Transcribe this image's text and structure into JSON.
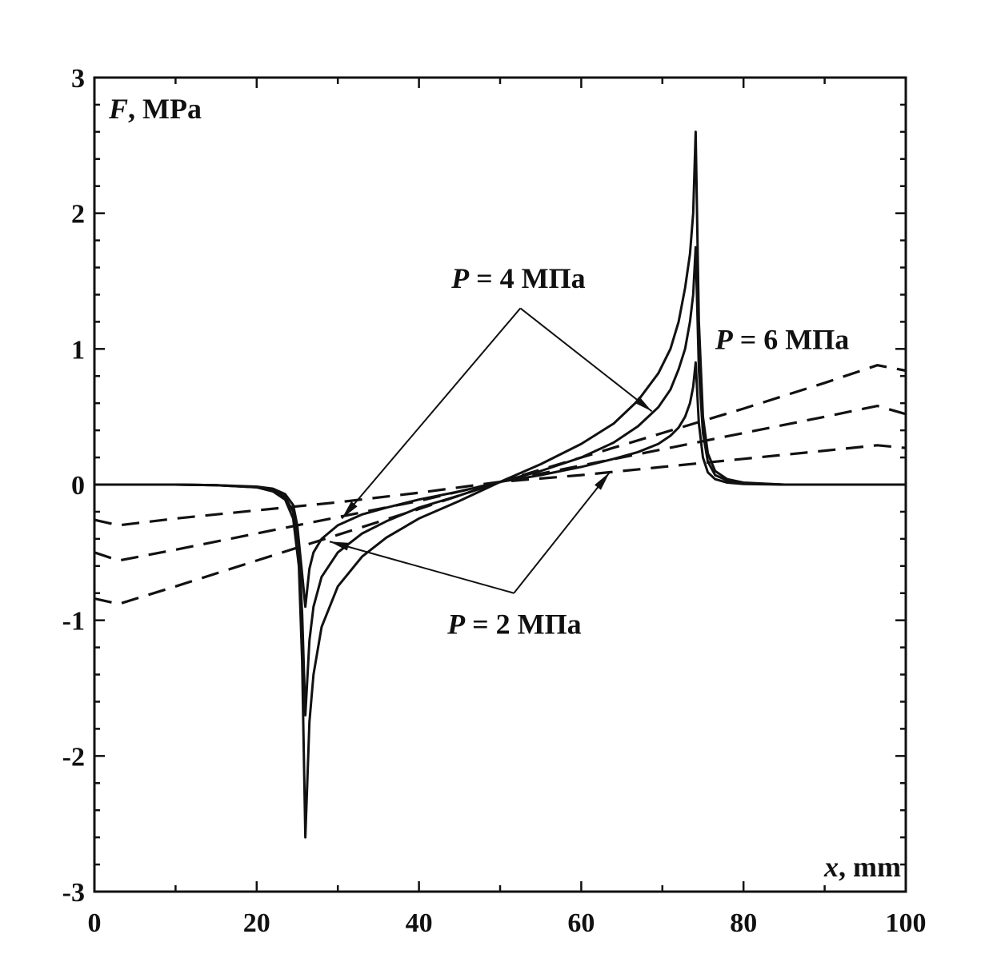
{
  "chart_data": {
    "type": "line",
    "title": "",
    "xlabel_var": "x",
    "xlabel_unit": ", mm",
    "ylabel_var": "F",
    "ylabel_unit": ", MPa",
    "xlim": [
      0,
      100
    ],
    "ylim": [
      -3,
      3
    ],
    "x_ticks": [
      0,
      20,
      40,
      60,
      80,
      100
    ],
    "y_ticks": [
      3,
      2,
      1,
      0,
      -1,
      -2,
      -3
    ],
    "grid": false,
    "series": [
      {
        "style": "solid",
        "x": [
          0,
          10,
          15,
          20,
          22,
          23.5,
          24.5,
          25.2,
          25.6,
          26,
          26.5,
          27,
          28,
          30,
          33,
          36,
          40,
          45,
          50,
          55,
          60,
          64,
          67,
          69.5,
          71,
          72,
          72.8,
          73.4,
          73.8,
          74.1,
          74.5,
          75,
          75.6,
          76.5,
          78,
          80,
          85,
          90,
          100
        ],
        "y": [
          0,
          0,
          -0.005,
          -0.02,
          -0.05,
          -0.11,
          -0.25,
          -0.6,
          -1.3,
          -2.6,
          -1.75,
          -1.4,
          -1.05,
          -0.75,
          -0.53,
          -0.39,
          -0.25,
          -0.12,
          0.02,
          0.15,
          0.3,
          0.45,
          0.62,
          0.82,
          1.0,
          1.2,
          1.45,
          1.7,
          2.0,
          2.6,
          1.2,
          0.5,
          0.23,
          0.1,
          0.04,
          0.015,
          0,
          0,
          0
        ]
      },
      {
        "style": "solid",
        "x": [
          0,
          10,
          15,
          20,
          22,
          23.5,
          24.5,
          25.2,
          25.6,
          26,
          26.5,
          27,
          28,
          30,
          33,
          36,
          40,
          45,
          50,
          55,
          60,
          64,
          67,
          69.5,
          71,
          72,
          72.8,
          73.4,
          73.8,
          74.1,
          74.5,
          75,
          75.6,
          76.5,
          78,
          80,
          85,
          90,
          100
        ],
        "y": [
          0,
          0,
          -0.005,
          -0.02,
          -0.04,
          -0.09,
          -0.2,
          -0.45,
          -0.95,
          -1.7,
          -1.15,
          -0.9,
          -0.68,
          -0.5,
          -0.36,
          -0.27,
          -0.17,
          -0.08,
          0.02,
          0.1,
          0.2,
          0.31,
          0.43,
          0.57,
          0.7,
          0.85,
          1.0,
          1.2,
          1.4,
          1.75,
          0.85,
          0.38,
          0.17,
          0.07,
          0.03,
          0.01,
          0,
          0,
          0
        ]
      },
      {
        "style": "solid",
        "x": [
          0,
          10,
          15,
          20,
          22,
          23.5,
          24.5,
          25,
          25.5,
          26,
          26.5,
          27,
          28,
          30,
          33,
          36,
          40,
          45,
          50,
          55,
          60,
          64,
          67,
          69.5,
          71,
          72,
          72.8,
          73.4,
          73.8,
          74.1,
          74.5,
          75,
          75.6,
          76.5,
          78,
          80,
          85,
          90,
          100
        ],
        "y": [
          0,
          0,
          -0.005,
          -0.015,
          -0.03,
          -0.07,
          -0.15,
          -0.3,
          -0.6,
          -0.9,
          -0.62,
          -0.5,
          -0.4,
          -0.3,
          -0.22,
          -0.17,
          -0.11,
          -0.05,
          0.02,
          0.07,
          0.13,
          0.19,
          0.24,
          0.3,
          0.36,
          0.42,
          0.5,
          0.6,
          0.72,
          0.9,
          0.45,
          0.2,
          0.09,
          0.04,
          0.015,
          0.005,
          0,
          0,
          0
        ]
      },
      {
        "style": "dashed",
        "x": [
          0,
          3,
          10,
          20,
          30,
          40,
          50,
          60,
          70,
          80,
          90,
          96.5,
          100
        ],
        "y": [
          -0.5,
          -0.56,
          -0.48,
          -0.36,
          -0.24,
          -0.12,
          0.02,
          0.14,
          0.26,
          0.38,
          0.5,
          0.58,
          0.52
        ]
      },
      {
        "style": "dashed",
        "x": [
          0,
          3,
          10,
          20,
          30,
          40,
          50,
          60,
          70,
          80,
          90,
          96.5,
          100
        ],
        "y": [
          -0.84,
          -0.88,
          -0.75,
          -0.56,
          -0.37,
          -0.18,
          0.02,
          0.2,
          0.38,
          0.56,
          0.75,
          0.88,
          0.84
        ]
      },
      {
        "style": "dashed",
        "x": [
          0,
          3,
          10,
          20,
          30,
          40,
          50,
          60,
          70,
          80,
          90,
          96.5,
          100
        ],
        "y": [
          -0.26,
          -0.3,
          -0.25,
          -0.19,
          -0.13,
          -0.06,
          0.02,
          0.07,
          0.13,
          0.19,
          0.25,
          0.29,
          0.27
        ]
      }
    ],
    "annotations": [
      {
        "label_var": "P",
        "label_rest": " = 4 МПа",
        "pos": [
          44,
          1.45
        ],
        "hub": [
          52.5,
          1.3
        ],
        "targets": [
          [
            30.5,
            -0.25
          ],
          [
            68.7,
            0.54
          ]
        ]
      },
      {
        "label_var": "P",
        "label_rest": " = 6 МПа",
        "pos": [
          76.5,
          1.0
        ],
        "hub": null,
        "targets": []
      },
      {
        "label_var": "P",
        "label_rest": " = 2 МПа",
        "pos": [
          43.5,
          -1.1
        ],
        "hub": [
          51.7,
          -0.8
        ],
        "targets": [
          [
            29,
            -0.42
          ],
          [
            63.5,
            0.09
          ]
        ]
      }
    ]
  }
}
